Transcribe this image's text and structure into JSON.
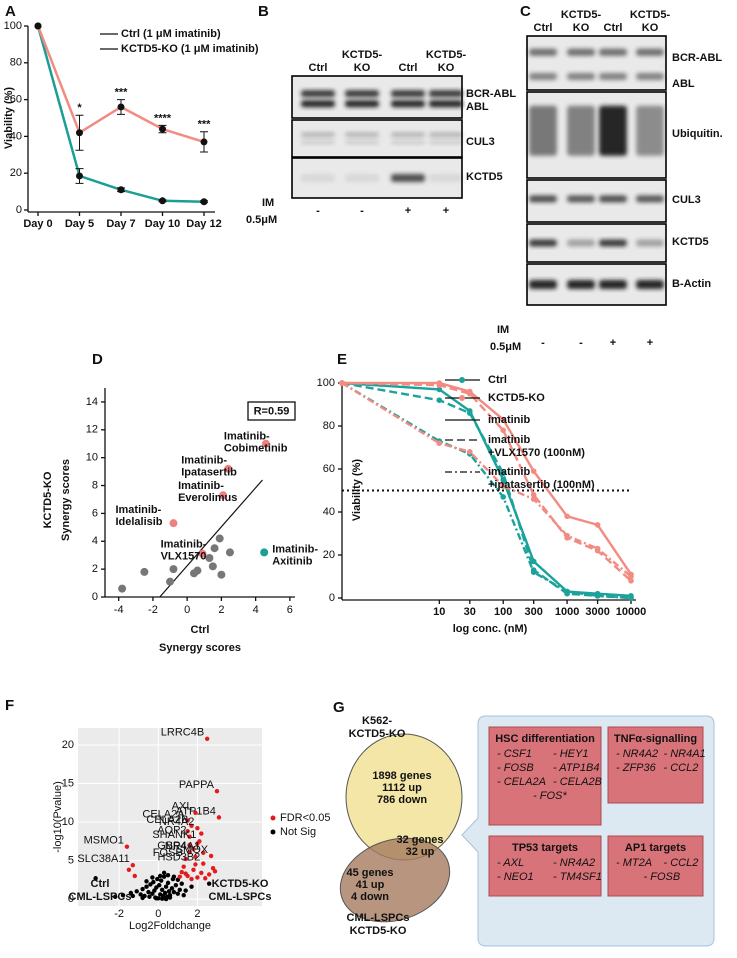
{
  "panel_labels": [
    "A",
    "B",
    "C",
    "D",
    "E",
    "F",
    "G"
  ],
  "chart_data": [
    {
      "type": "line",
      "categories": [
        "Day 0",
        "Day 5",
        "Day 7",
        "Day 10",
        "Day 12"
      ],
      "y_label": "Viability (%)",
      "ylim": [
        0,
        100
      ],
      "yticks": [
        0,
        20,
        40,
        60,
        80,
        100
      ],
      "series": [
        {
          "name": "Ctrl (1 μM imatinib)",
          "color": "#1a9e96",
          "values": [
            100,
            18.5,
            11,
            5,
            4.5
          ],
          "errors": [
            0,
            4,
            1,
            0.5,
            0.5
          ]
        },
        {
          "name": "KCTD5-KO (1 μM imatinib)",
          "color": "#f28b82",
          "values": [
            100,
            42,
            56,
            44,
            37
          ],
          "errors": [
            0,
            9.5,
            4,
            2,
            5.5
          ]
        }
      ],
      "annotations": [
        null,
        "*",
        "***",
        "****",
        "***"
      ]
    },
    {
      "type": "scatter",
      "x_label": [
        "Ctrl",
        "Synergy scores"
      ],
      "y_label": [
        "KCTD5-KO",
        "Synergy scores"
      ],
      "annotation": "R=0.59",
      "xlim": [
        -4.8,
        6.3
      ],
      "xticks": [
        -4,
        -2,
        0,
        2,
        4,
        6
      ],
      "ylim": [
        0,
        15
      ],
      "yticks": [
        0,
        2,
        4,
        6,
        8,
        10,
        12,
        14
      ],
      "series": [
        {
          "color": "#777777",
          "x": [
            -3.8,
            -2.5,
            -1.0,
            -0.8,
            0.4,
            0.6,
            1.3,
            1.6,
            1.9,
            2.5,
            2.0,
            1.5
          ],
          "y": [
            0.6,
            1.8,
            1.1,
            2.0,
            1.7,
            1.9,
            2.8,
            3.5,
            4.2,
            3.2,
            1.6,
            2.2
          ]
        },
        {
          "color": "#f08080",
          "x": [
            4.6,
            2.4,
            2.1,
            -0.8,
            0.9
          ],
          "y": [
            11,
            9.2,
            7.3,
            5.3,
            3.1
          ],
          "labels": [
            [
              "Imatinib-",
              "Cobimetinib"
            ],
            [
              "Imatinib-",
              "Ipatasertib"
            ],
            [
              "Imatinib-",
              "Everolimus"
            ],
            [
              "Imatinib-",
              "Idelalisib"
            ],
            [
              "Imatinib-",
              "VLX1570"
            ]
          ]
        },
        {
          "color": "#1a9e96",
          "x": [
            4.5
          ],
          "y": [
            3.2
          ],
          "labels": [
            [
              "Imatinib-",
              "Axitinib"
            ]
          ]
        }
      ],
      "trend_line": {
        "x": [
          -1.6,
          4.4
        ],
        "y": [
          0,
          8.4
        ]
      }
    },
    {
      "type": "line",
      "log_x": true,
      "x": [
        0.3,
        10,
        30,
        100,
        300,
        1000,
        3000,
        10000
      ],
      "xlim": [
        0.3,
        10000
      ],
      "xticks": [
        10,
        30,
        100,
        300,
        1000,
        3000,
        10000
      ],
      "ylim": [
        0,
        100
      ],
      "yticks": [
        0,
        20,
        40,
        60,
        80,
        100
      ],
      "x_label": "log conc. (nM)",
      "y_label": "Viability (%)",
      "reference_line": 50,
      "treatments": [
        {
          "name": [
            "imatinib"
          ],
          "dash": "solid"
        },
        {
          "name": [
            "imatinib",
            "+VLX1570 (100nM)"
          ],
          "dash": "dashed"
        },
        {
          "name": [
            "imatinib",
            "+ipatasertib (100nM)"
          ],
          "dash": "dashdot"
        }
      ],
      "groups": [
        {
          "name": "Ctrl",
          "color": "#1aa39b",
          "series": [
            {
              "values": [
                100,
                97,
                87,
                55,
                17,
                3,
                2,
                1
              ]
            },
            {
              "values": [
                100,
                92,
                86,
                58,
                13,
                2,
                1,
                0
              ]
            },
            {
              "values": [
                100,
                73,
                67,
                47,
                12,
                3,
                1,
                0
              ]
            }
          ]
        },
        {
          "name": "KCTD5-KO",
          "color": "#f28b82",
          "series": [
            {
              "values": [
                100,
                100,
                96,
                83,
                59,
                38,
                34,
                11
              ]
            },
            {
              "values": [
                100,
                99,
                95,
                78,
                48,
                28,
                22,
                8
              ]
            },
            {
              "values": [
                100,
                72,
                68,
                52,
                46,
                29,
                23,
                10
              ]
            }
          ]
        }
      ]
    },
    {
      "type": "scatter",
      "x_label": "Log2Foldchange",
      "y_label": "-log10(Pvalue)",
      "xlim": [
        -4.1,
        5.3
      ],
      "ylim": [
        -0.9,
        22.2
      ],
      "xticks": [
        -2,
        0,
        2
      ],
      "yticks": [
        0,
        5,
        10,
        15,
        20
      ],
      "grid": true,
      "series": [
        {
          "name": "FDR<0.05",
          "color": "#e41a1c",
          "x": [
            2.5,
            3.0,
            1.9,
            3.1,
            1.5,
            1.7,
            2.0,
            1.6,
            2.1,
            1.6,
            2.3,
            2.7,
            1.4,
            2.3,
            -1.6,
            -1.3,
            1.2,
            1.5,
            1.8,
            2.0,
            2.2,
            1.3,
            1.9,
            2.6,
            1.7,
            1.1,
            2.4,
            -1.5,
            -1.2,
            2.8,
            1.6,
            1.8,
            1.5,
            2.0,
            2.2,
            1.9,
            2.9,
            1.4
          ],
          "y": [
            20.8,
            14.0,
            11.2,
            10.6,
            10.2,
            9.5,
            9.2,
            8.1,
            7.5,
            6.1,
            6.0,
            5.6,
            5.2,
            4.6,
            6.8,
            4.4,
            3.5,
            3.0,
            3.8,
            2.8,
            3.4,
            4.2,
            4.5,
            3.2,
            2.6,
            2.9,
            2.7,
            3.8,
            3.0,
            4.0,
            7.0,
            6.5,
            8.8,
            7.2,
            8.5,
            5.5,
            3.6,
            3.3
          ],
          "labels": [
            "LRRC4B",
            "PAPPA",
            "AXL",
            "ATP1B4",
            "CELA2A",
            "CELA2B",
            "NR4A2",
            "AQP2",
            "SHANK1",
            "GBP4",
            "NR4A1",
            "SMOX",
            "FOSB",
            "HSD3B2",
            "MSMO1",
            "SLC38A11",
            null,
            null,
            null,
            null,
            null,
            null,
            null,
            null,
            null,
            null,
            null,
            null,
            null,
            null,
            null,
            null,
            null,
            null,
            null,
            null,
            null,
            null
          ]
        },
        {
          "name": "Not Sig",
          "color": "#000000",
          "x": [
            -3.2,
            -2.2,
            -1.8,
            -1.4,
            -1.1,
            -0.9,
            -0.8,
            -0.7,
            -0.6,
            -0.5,
            -0.45,
            -0.4,
            -0.3,
            -0.25,
            -0.2,
            -0.15,
            -0.1,
            -0.05,
            0,
            0.05,
            0.1,
            0.15,
            0.2,
            0.25,
            0.3,
            0.35,
            0.4,
            0.45,
            0.5,
            0.55,
            0.6,
            0.7,
            0.75,
            0.8,
            0.9,
            1.0,
            1.1,
            1.2,
            1.3,
            0.5,
            0.3,
            0.1,
            -0.3,
            -0.6,
            0.8,
            1.0,
            0.2,
            -0.1,
            0.6,
            1.4,
            -0.8,
            -1.3,
            2.6,
            1.7,
            0.4
          ],
          "y": [
            2.7,
            0.3,
            0.5,
            0.8,
            1.0,
            0.6,
            1.3,
            0.4,
            1.6,
            0.9,
            0.3,
            1.9,
            0.7,
            2.2,
            1.1,
            0.2,
            1.5,
            2.6,
            0.1,
            1.8,
            0.6,
            2.4,
            1.2,
            0.4,
            2.9,
            0.8,
            1.6,
            0.3,
            2.1,
            1.0,
            0.5,
            1.4,
            2.6,
            0.9,
            1.8,
            0.7,
            1.2,
            2.0,
            0.5,
            3.1,
            3.4,
            3.0,
            2.8,
            2.3,
            2.9,
            2.5,
            0.05,
            0.1,
            0.2,
            1.1,
            0.15,
            0.4,
            2.0,
            1.6,
            0.0
          ]
        }
      ],
      "corner_labels": {
        "left": [
          "Ctrl",
          "CML-LSPCs"
        ],
        "right": [
          "KCTD5-KO",
          "CML-LSPCs"
        ]
      }
    }
  ],
  "blots": [
    {
      "columns": [
        [
          "Ctrl"
        ],
        [
          "KCTD5-",
          "KO"
        ],
        [
          "Ctrl"
        ],
        [
          "KCTD5-",
          "KO"
        ]
      ],
      "rows": [
        {
          "labels": [
            "BCR-ABL",
            "ABL"
          ]
        },
        {
          "labels": [
            "CUL3"
          ]
        },
        {
          "labels": [
            "KCTD5"
          ]
        }
      ],
      "treatment_label": [
        "IM",
        "0.5μM"
      ],
      "treatment": [
        "-",
        "-",
        "+",
        "+"
      ]
    },
    {
      "columns": [
        [
          "Ctrl"
        ],
        [
          "KCTD5-",
          "KO"
        ],
        [
          "Ctrl"
        ],
        [
          "KCTD5-",
          "KO"
        ]
      ],
      "rows": [
        {
          "labels": [
            "BCR-ABL",
            "ABL"
          ]
        },
        {
          "labels": [
            "Ubiquitin."
          ]
        },
        {
          "labels": [
            "CUL3"
          ]
        },
        {
          "labels": [
            "KCTD5"
          ]
        },
        {
          "labels": [
            "B-Actin"
          ]
        }
      ],
      "treatment_label": [
        "IM",
        "0.5μM"
      ],
      "treatment": [
        "-",
        "-",
        "+",
        "+"
      ]
    }
  ],
  "venn": {
    "sets": [
      {
        "name": [
          "K562-",
          "KCTD5-KO"
        ],
        "genes": "1898 genes",
        "up": "1112 up",
        "down": "786 down"
      },
      {
        "name": [
          "CML-LSPCs",
          "KCTD5-KO"
        ],
        "genes": "45 genes",
        "up": "41 up",
        "down": "4 down"
      }
    ],
    "overlap": {
      "genes": "32 genes",
      "up": "32 up"
    },
    "gene_sets": [
      {
        "title": "HSC differentiation",
        "genes": [
          "- CSF1",
          "- HEY1",
          "- FOSB",
          "- ATP1B4",
          "- CELA2A",
          "- CELA2B",
          "- FOS*"
        ]
      },
      {
        "title": "TNFα-signalling",
        "genes": [
          "- NR4A2",
          "- NR4A1",
          "- ZFP36",
          "- CCL2"
        ]
      },
      {
        "title": "TP53 targets",
        "genes": [
          "- AXL",
          "- NR4A2",
          "- NEO1",
          "- TM4SF1"
        ]
      },
      {
        "title": "AP1 targets",
        "genes": [
          "- MT2A",
          "- CCL2",
          "- FOSB"
        ]
      }
    ]
  }
}
